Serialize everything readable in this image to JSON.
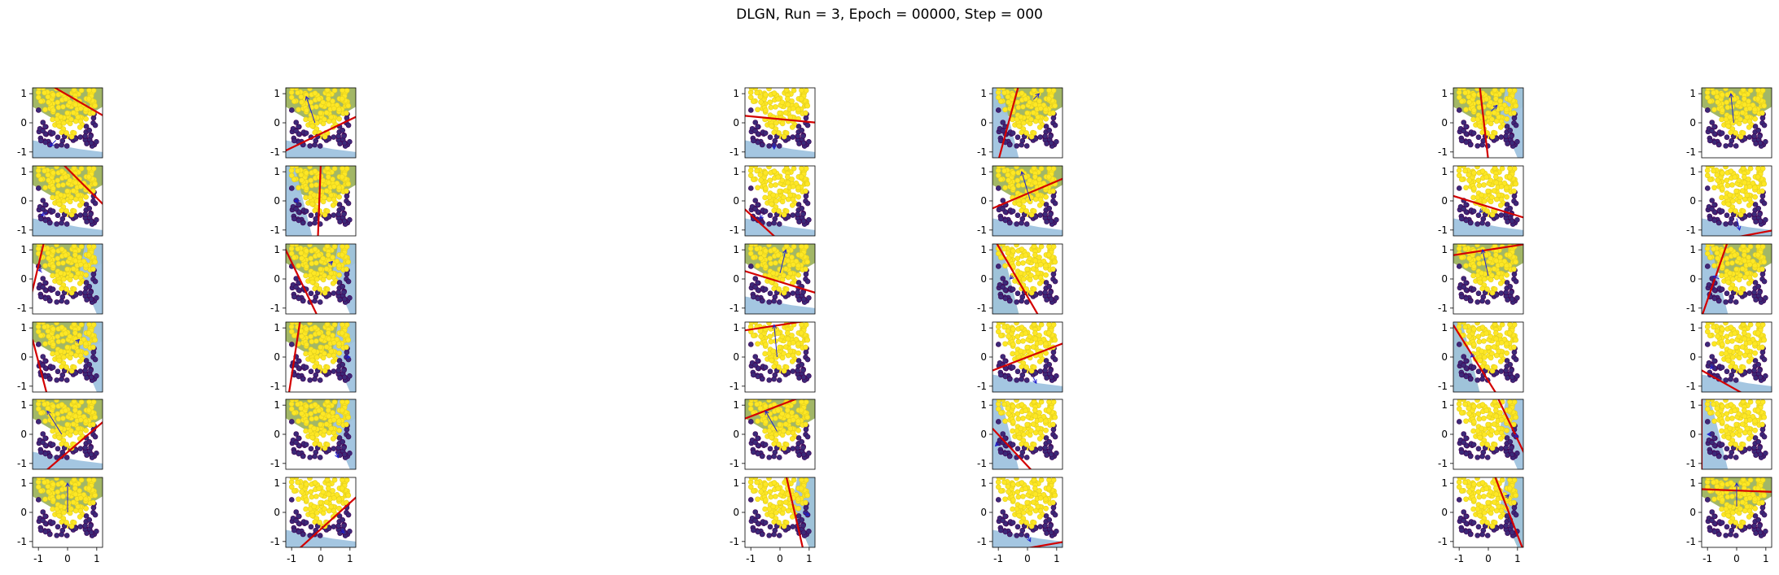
{
  "figure": {
    "title": "DLGN, Run = 3, Epoch = 00000, Step = 000",
    "rows": 6,
    "cols": 6
  },
  "colors": {
    "yellow_class": "#fde725",
    "purple_class": "#3b2a78",
    "dot_edge": "#440154",
    "green_region": "#9db35f",
    "blue_region": "#9fc3df",
    "boundary_line": "#d40000",
    "arrow": "#1f1fcf"
  },
  "chart_data": {
    "type": "scatter",
    "xlim": [
      -1.2,
      1.2
    ],
    "ylim": [
      -1.2,
      1.2
    ],
    "xticks": [
      "-1",
      "0",
      "1"
    ],
    "yticks": [
      "1",
      "0",
      "-1"
    ],
    "grid": false,
    "panels": [
      {
        "row": 0,
        "col": 0,
        "line": [
          [
            -0.6,
            1.3
          ],
          [
            1.3,
            0.2
          ]
        ],
        "arrow": [
          [
            -0.4,
            -0.6
          ],
          [
            -0.6,
            -0.8
          ]
        ],
        "green": "top",
        "blue": "bottom"
      },
      {
        "row": 0,
        "col": 1,
        "line": [
          [
            -1.3,
            -1.0
          ],
          [
            1.3,
            0.25
          ]
        ],
        "arrow": [
          [
            -0.2,
            0.0
          ],
          [
            -0.5,
            0.9
          ]
        ],
        "green": "top",
        "blue": "bottom"
      },
      {
        "row": 0,
        "col": 2,
        "line": [
          [
            -1.3,
            0.25
          ],
          [
            1.3,
            0.0
          ]
        ],
        "arrow": [
          [
            -0.2,
            -0.7
          ],
          [
            -0.2,
            -0.9
          ]
        ],
        "green": "none",
        "blue": "bottom"
      },
      {
        "row": 0,
        "col": 3,
        "line": [
          [
            -0.3,
            1.3
          ],
          [
            -1.0,
            -1.3
          ]
        ],
        "arrow": [
          [
            0.2,
            0.8
          ],
          [
            0.4,
            1.0
          ]
        ],
        "green": "top",
        "blue": "left"
      },
      {
        "row": 0,
        "col": 4,
        "line": [
          [
            -0.3,
            1.3
          ],
          [
            0.0,
            -1.3
          ]
        ],
        "arrow": [
          [
            0.1,
            0.4
          ],
          [
            0.3,
            0.6
          ]
        ],
        "green": "top",
        "blue": "right"
      },
      {
        "row": 0,
        "col": 5,
        "line": [],
        "arrow": [
          [
            -0.1,
            0.0
          ],
          [
            -0.2,
            1.0
          ]
        ],
        "green": "top",
        "blue": "none"
      },
      {
        "row": 1,
        "col": 0,
        "line": [
          [
            -0.2,
            1.3
          ],
          [
            1.3,
            -0.2
          ]
        ],
        "arrow": [
          [
            -0.7,
            -0.4
          ],
          [
            -0.9,
            -0.5
          ]
        ],
        "green": "top",
        "blue": "bottom"
      },
      {
        "row": 1,
        "col": 1,
        "line": [
          [
            0.0,
            1.3
          ],
          [
            -0.1,
            -1.3
          ]
        ],
        "arrow": [
          [
            -0.7,
            0.0
          ],
          [
            -0.9,
            0.0
          ]
        ],
        "green": "top",
        "blue": "left"
      },
      {
        "row": 1,
        "col": 2,
        "line": [
          [
            -1.3,
            -0.2
          ],
          [
            -0.1,
            -1.3
          ]
        ],
        "arrow": [
          [
            -0.6,
            -0.5
          ],
          [
            -0.7,
            -0.6
          ]
        ],
        "green": "none",
        "blue": "bottom"
      },
      {
        "row": 1,
        "col": 3,
        "line": [
          [
            -1.3,
            -0.3
          ],
          [
            1.3,
            0.8
          ]
        ],
        "arrow": [
          [
            0.1,
            0.0
          ],
          [
            -0.2,
            1.0
          ]
        ],
        "green": "top",
        "blue": "bottom"
      },
      {
        "row": 1,
        "col": 4,
        "line": [
          [
            -1.3,
            0.2
          ],
          [
            1.3,
            -0.6
          ]
        ],
        "arrow": [
          [
            -0.2,
            -0.3
          ],
          [
            -0.3,
            -0.4
          ]
        ],
        "green": "none",
        "blue": "bottom"
      },
      {
        "row": 1,
        "col": 5,
        "line": [
          [
            -0.3,
            -1.3
          ],
          [
            1.3,
            -1.0
          ]
        ],
        "arrow": [
          [
            0.0,
            -0.6
          ],
          [
            0.1,
            -1.0
          ]
        ],
        "green": "none",
        "blue": "bottom"
      },
      {
        "row": 2,
        "col": 0,
        "line": [
          [
            -0.8,
            1.3
          ],
          [
            -1.3,
            -0.8
          ]
        ],
        "arrow": [
          [
            -0.9,
            0.3
          ],
          [
            -1.0,
            0.3
          ]
        ],
        "green": "top",
        "blue": "right"
      },
      {
        "row": 2,
        "col": 1,
        "line": [
          [
            -1.3,
            1.2
          ],
          [
            -0.1,
            -1.3
          ]
        ],
        "arrow": [
          [
            0.3,
            0.5
          ],
          [
            0.4,
            0.6
          ]
        ],
        "green": "top",
        "blue": "right"
      },
      {
        "row": 2,
        "col": 2,
        "line": [
          [
            -1.3,
            0.3
          ],
          [
            1.3,
            -0.5
          ]
        ],
        "arrow": [
          [
            0.0,
            0.2
          ],
          [
            0.2,
            1.0
          ]
        ],
        "green": "top",
        "blue": "bottom"
      },
      {
        "row": 2,
        "col": 3,
        "line": [
          [
            -1.1,
            1.3
          ],
          [
            0.4,
            -1.3
          ]
        ],
        "arrow": [
          [
            -0.5,
            0.1
          ],
          [
            -0.6,
            0.0
          ]
        ],
        "green": "left",
        "blue": "left"
      },
      {
        "row": 2,
        "col": 4,
        "line": [
          [
            -1.3,
            0.8
          ],
          [
            1.3,
            1.2
          ]
        ],
        "arrow": [
          [
            0.0,
            0.1
          ],
          [
            -0.2,
            1.0
          ]
        ],
        "green": "top",
        "blue": "none"
      },
      {
        "row": 2,
        "col": 5,
        "line": [
          [
            -0.3,
            1.3
          ],
          [
            -1.2,
            -1.3
          ]
        ],
        "arrow": [
          [
            -0.6,
            0.0
          ],
          [
            -0.8,
            0.1
          ]
        ],
        "green": "top",
        "blue": "left"
      },
      {
        "row": 3,
        "col": 0,
        "line": [
          [
            -1.2,
            0.6
          ],
          [
            -0.7,
            -1.3
          ]
        ],
        "arrow": [
          [
            0.3,
            0.5
          ],
          [
            0.4,
            0.6
          ]
        ],
        "green": "top",
        "blue": "right"
      },
      {
        "row": 3,
        "col": 1,
        "line": [
          [
            -0.7,
            1.3
          ],
          [
            -1.1,
            -1.3
          ]
        ],
        "arrow": [
          [
            0.8,
            0.0
          ],
          [
            1.0,
            0.0
          ]
        ],
        "green": "top",
        "blue": "right"
      },
      {
        "row": 3,
        "col": 2,
        "line": [
          [
            -1.3,
            0.9
          ],
          [
            1.3,
            1.3
          ]
        ],
        "arrow": [
          [
            -0.1,
            0.0
          ],
          [
            -0.2,
            1.1
          ]
        ],
        "green": "none",
        "blue": "none"
      },
      {
        "row": 3,
        "col": 3,
        "line": [
          [
            -1.3,
            -0.5
          ],
          [
            1.3,
            0.5
          ]
        ],
        "arrow": [
          [
            0.2,
            -0.7
          ],
          [
            0.3,
            -0.9
          ]
        ],
        "green": "none",
        "blue": "bottom"
      },
      {
        "row": 3,
        "col": 4,
        "line": [
          [
            -1.2,
            1.1
          ],
          [
            0.3,
            -1.3
          ]
        ],
        "arrow": [
          [
            -0.5,
            0.1
          ],
          [
            -0.6,
            0.0
          ]
        ],
        "green": "left",
        "blue": "left"
      },
      {
        "row": 3,
        "col": 5,
        "line": [
          [
            -1.3,
            -0.4
          ],
          [
            0.3,
            -1.3
          ]
        ],
        "arrow": [
          [
            -0.8,
            -0.3
          ],
          [
            -0.9,
            -0.4
          ]
        ],
        "green": "none",
        "blue": "bottom"
      },
      {
        "row": 4,
        "col": 0,
        "line": [
          [
            -0.8,
            -1.3
          ],
          [
            1.3,
            0.5
          ]
        ],
        "arrow": [
          [
            -0.2,
            0.0
          ],
          [
            -0.7,
            0.8
          ]
        ],
        "green": "top",
        "blue": "bottom"
      },
      {
        "row": 4,
        "col": 1,
        "line": [],
        "arrow": [
          [
            0.5,
            -0.6
          ],
          [
            0.6,
            -0.8
          ]
        ],
        "green": "top",
        "blue": "right"
      },
      {
        "row": 4,
        "col": 2,
        "line": [
          [
            -1.3,
            0.5
          ],
          [
            1.3,
            1.5
          ]
        ],
        "arrow": [
          [
            -0.1,
            0.1
          ],
          [
            -0.5,
            0.8
          ]
        ],
        "green": "top",
        "blue": "none"
      },
      {
        "row": 4,
        "col": 3,
        "line": [
          [
            -1.2,
            0.2
          ],
          [
            0.2,
            -1.3
          ]
        ],
        "arrow": [
          [
            -1.0,
            -0.3
          ],
          [
            -1.1,
            -0.4
          ]
        ],
        "green": "none",
        "blue": "left"
      },
      {
        "row": 4,
        "col": 4,
        "line": [
          [
            0.3,
            1.3
          ],
          [
            1.3,
            -0.8
          ]
        ],
        "arrow": [
          [
            0.9,
            0.0
          ],
          [
            1.0,
            -0.1
          ]
        ],
        "green": "none",
        "blue": "right"
      },
      {
        "row": 4,
        "col": 5,
        "line": [
          [
            -1.2,
            1.3
          ],
          [
            -1.2,
            -1.3
          ]
        ],
        "arrow": [
          [
            -0.9,
            0.0
          ],
          [
            -1.0,
            0.0
          ]
        ],
        "green": "none",
        "blue": "left"
      },
      {
        "row": 5,
        "col": 0,
        "line": [],
        "arrow": [
          [
            0.0,
            0.0
          ],
          [
            0.0,
            1.0
          ]
        ],
        "green": "top",
        "blue": "none"
      },
      {
        "row": 5,
        "col": 1,
        "line": [
          [
            -0.8,
            -1.3
          ],
          [
            1.3,
            0.6
          ]
        ],
        "arrow": [
          [
            0.7,
            -0.6
          ],
          [
            0.8,
            -0.7
          ]
        ],
        "green": "none",
        "blue": "bottom"
      },
      {
        "row": 5,
        "col": 2,
        "line": [
          [
            0.2,
            1.3
          ],
          [
            0.8,
            -1.3
          ]
        ],
        "arrow": [
          [
            0.8,
            0.0
          ],
          [
            1.0,
            -0.1
          ]
        ],
        "green": "right",
        "blue": "right"
      },
      {
        "row": 5,
        "col": 3,
        "line": [
          [
            -0.4,
            -1.3
          ],
          [
            1.3,
            -1.0
          ]
        ],
        "arrow": [
          [
            0.0,
            -0.8
          ],
          [
            0.1,
            -1.0
          ]
        ],
        "green": "none",
        "blue": "bottom"
      },
      {
        "row": 5,
        "col": 4,
        "line": [
          [
            0.2,
            1.3
          ],
          [
            1.2,
            -1.3
          ]
        ],
        "arrow": [
          [
            0.6,
            0.5
          ],
          [
            0.7,
            0.6
          ]
        ],
        "green": "right",
        "blue": "right"
      },
      {
        "row": 5,
        "col": 5,
        "line": [
          [
            -1.3,
            0.8
          ],
          [
            1.3,
            0.7
          ]
        ],
        "arrow": [
          [
            0.0,
            0.2
          ],
          [
            0.0,
            1.0
          ]
        ],
        "green": "top",
        "blue": "none"
      }
    ]
  }
}
